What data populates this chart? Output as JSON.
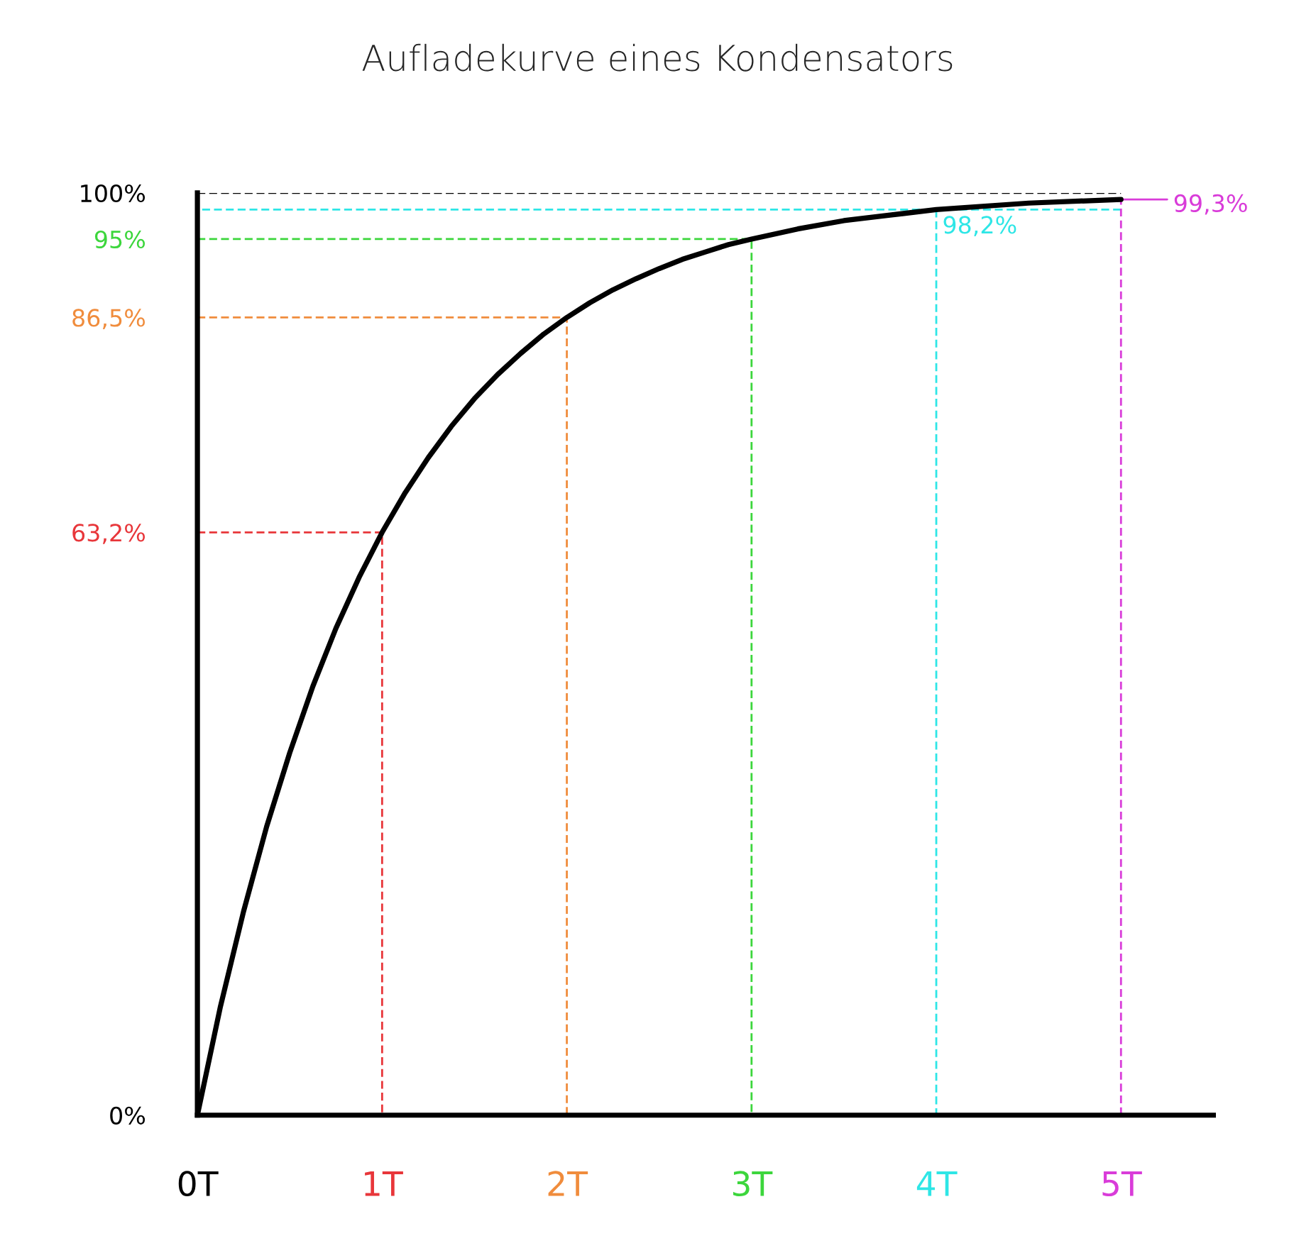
{
  "chart_data": {
    "type": "line",
    "title": "Aufladekurve eines Kondensators",
    "xlim": [
      0,
      5.5
    ],
    "ylim": [
      0,
      100
    ],
    "xticks": [
      {
        "value": 0,
        "label": "0T"
      },
      {
        "value": 1,
        "label": "1T"
      },
      {
        "value": 2,
        "label": "2T"
      },
      {
        "value": 3,
        "label": "3T"
      },
      {
        "value": 4,
        "label": "4T"
      },
      {
        "value": 5,
        "label": "5T"
      }
    ],
    "yticks": [
      {
        "value": 0,
        "label": "0%"
      },
      {
        "value": 63.2,
        "label": "63,2%"
      },
      {
        "value": 86.5,
        "label": "86,5%"
      },
      {
        "value": 95,
        "label": "95%"
      },
      {
        "value": 100,
        "label": "100%"
      }
    ],
    "grid": false,
    "series": [
      {
        "color": "#000000",
        "line_style": "solid",
        "x": [
          0,
          0.125,
          0.25,
          0.375,
          0.5,
          0.625,
          0.75,
          0.875,
          1,
          1.125,
          1.25,
          1.375,
          1.5,
          1.625,
          1.75,
          1.875,
          2,
          2.125,
          2.25,
          2.375,
          2.5,
          2.625,
          2.75,
          2.875,
          3,
          3.25,
          3.5,
          3.75,
          4,
          4.5,
          5
        ],
        "values": [
          0,
          11.8,
          22.1,
          31.3,
          39.3,
          46.5,
          52.8,
          58.3,
          63.2,
          67.5,
          71.3,
          74.7,
          77.7,
          80.3,
          82.6,
          84.7,
          86.5,
          88.1,
          89.5,
          90.7,
          91.8,
          92.8,
          93.6,
          94.4,
          95.0,
          96.1,
          97.0,
          97.6,
          98.2,
          98.9,
          99.3
        ]
      },
      {
        "color": "#e8363a",
        "line_style": "dashed",
        "x": [
          0,
          1,
          1
        ],
        "values": [
          63.2,
          63.2,
          0
        ]
      },
      {
        "color": "#f08c3c",
        "line_style": "dashed",
        "x": [
          0,
          2,
          2
        ],
        "values": [
          86.5,
          86.5,
          0
        ]
      },
      {
        "color": "#3cd63c",
        "line_style": "dashed",
        "x": [
          0,
          3,
          3
        ],
        "values": [
          95,
          95,
          0
        ]
      },
      {
        "color": "#2ee6e6",
        "line_style": "dashed",
        "x": [
          5,
          0
        ],
        "values": [
          98.2,
          98.2
        ]
      },
      {
        "color": "#2ee6e6",
        "line_style": "dashed",
        "x": [
          4,
          4
        ],
        "values": [
          98.2,
          0
        ]
      },
      {
        "color": "#d93cd9",
        "line_style": "dashed",
        "x": [
          5,
          5
        ],
        "values": [
          0,
          99.3
        ]
      },
      {
        "color": "#d93cd9",
        "line_style": "solid",
        "x": [
          5,
          5.25
        ],
        "values": [
          99.3,
          99.3
        ]
      },
      {
        "color": "#000000",
        "line_style": "dashed",
        "x": [
          0,
          5
        ],
        "values": [
          100,
          100
        ]
      }
    ],
    "annotations": [
      {
        "text": "98,2%",
        "x": 4,
        "y": 98.2
      },
      {
        "text": "99,3%",
        "x": 5.25,
        "y": 99.3
      }
    ]
  }
}
